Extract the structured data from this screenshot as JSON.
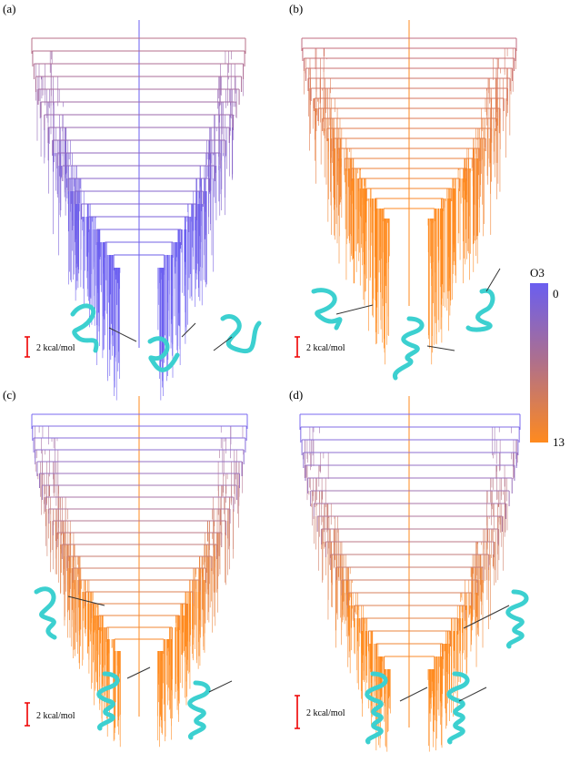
{
  "panels": [
    {
      "label": "(a)",
      "scale_bar": "2 kcal/mol"
    },
    {
      "label": "(b)",
      "scale_bar": "2 kcal/mol"
    },
    {
      "label": "(c)",
      "scale_bar": "2 kcal/mol"
    },
    {
      "label": "(d)",
      "scale_bar": "2 kcal/mol"
    }
  ],
  "colorbar": {
    "label": "O3",
    "min": 0,
    "max": 13
  }
}
